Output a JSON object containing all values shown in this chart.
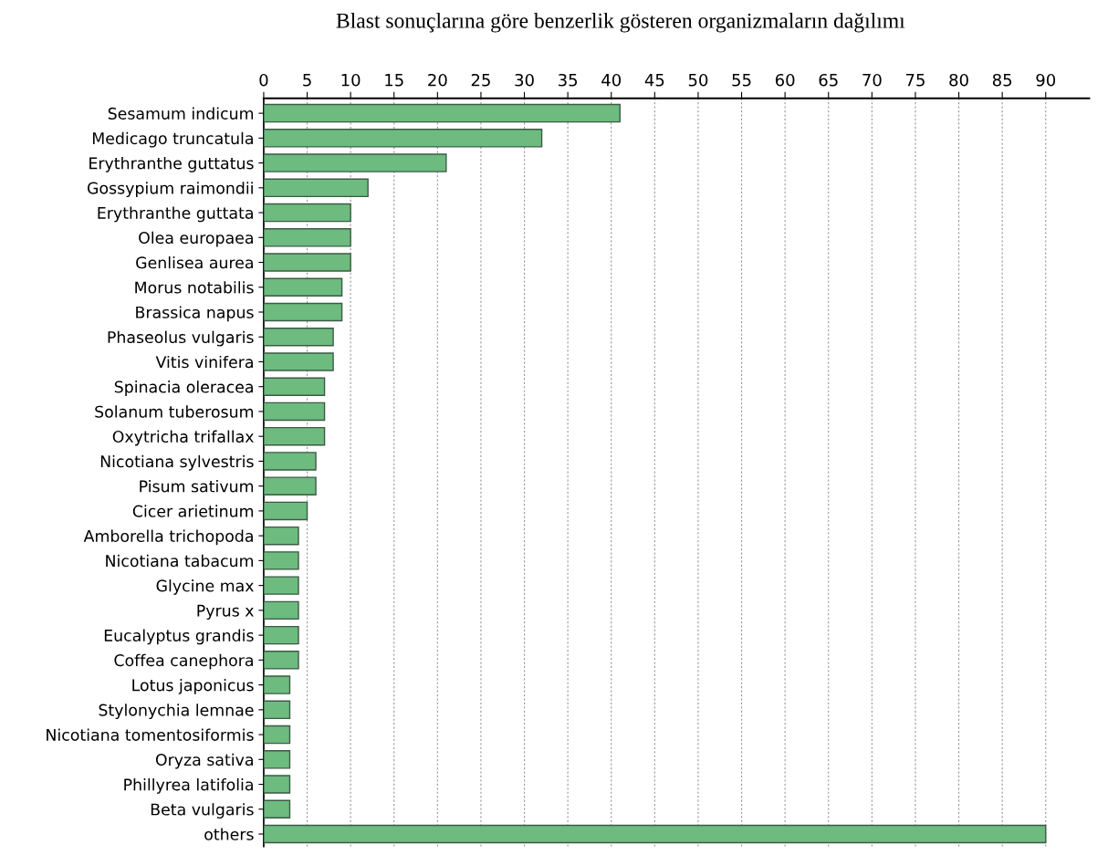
{
  "chart_data": {
    "type": "bar",
    "orientation": "horizontal",
    "title": "Blast sonuçlarına göre benzerlik gösteren organizmaların dağılımı",
    "categories": [
      "Sesamum indicum",
      "Medicago truncatula",
      "Erythranthe guttatus",
      "Gossypium raimondii",
      "Erythranthe guttata",
      "Olea europaea",
      "Genlisea aurea",
      "Morus notabilis",
      "Brassica napus",
      "Phaseolus vulgaris",
      "Vitis vinifera",
      "Spinacia oleracea",
      "Solanum tuberosum",
      "Oxytricha trifallax",
      "Nicotiana sylvestris",
      "Pisum sativum",
      "Cicer arietinum",
      "Amborella trichopoda",
      "Nicotiana tabacum",
      "Glycine max",
      "Pyrus x",
      "Eucalyptus grandis",
      "Coffea canephora",
      "Lotus japonicus",
      "Stylonychia lemnae",
      "Nicotiana tomentosiformis",
      "Oryza sativa",
      "Phillyrea latifolia",
      "Beta vulgaris",
      "others"
    ],
    "values": [
      41,
      32,
      21,
      12,
      10,
      10,
      10,
      9,
      9,
      8,
      8,
      7,
      7,
      7,
      6,
      6,
      5,
      4,
      4,
      4,
      4,
      4,
      4,
      3,
      3,
      3,
      3,
      3,
      3,
      90
    ],
    "color": "#6dbb7f",
    "xlim": [
      0,
      95
    ],
    "xticks": [
      0,
      5,
      10,
      15,
      20,
      25,
      30,
      35,
      40,
      45,
      50,
      55,
      60,
      65,
      70,
      75,
      80,
      85,
      90
    ],
    "grid": "x"
  }
}
